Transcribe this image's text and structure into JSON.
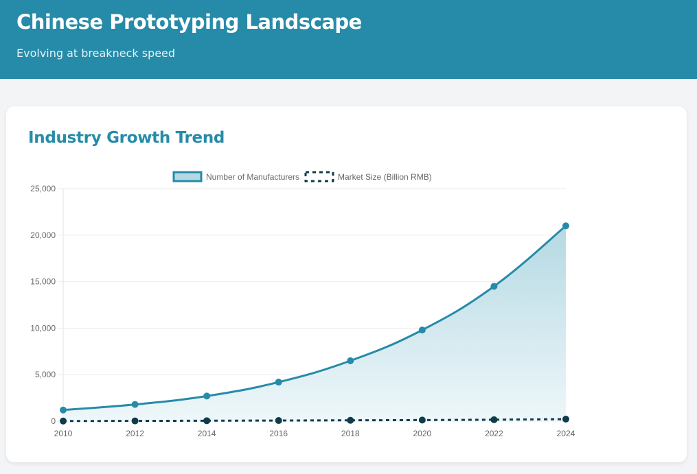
{
  "header": {
    "title": "Chinese Prototyping Landscape",
    "subtitle": "Evolving at breakneck speed"
  },
  "card": {
    "title": "Industry Growth Trend"
  },
  "colors": {
    "primary": "#268ba8",
    "secondary": "#0e3c4a",
    "area_top": "#b5d9e3",
    "area_bottom": "#eef7fa"
  },
  "chart_data": {
    "type": "line",
    "title": "Industry Growth Trend",
    "xlabel": "",
    "ylabel": "",
    "x": [
      "2010",
      "2012",
      "2014",
      "2016",
      "2018",
      "2020",
      "2022",
      "2024"
    ],
    "ylim": [
      0,
      25000
    ],
    "yticks": [
      "0",
      "5,000",
      "10,000",
      "15,000",
      "20,000",
      "25,000"
    ],
    "ytick_values": [
      0,
      5000,
      10000,
      15000,
      20000,
      25000
    ],
    "grid": true,
    "legend_position": "top-center",
    "series": [
      {
        "name": "Number of Manufacturers",
        "values": [
          1200,
          1800,
          2700,
          4200,
          6500,
          9800,
          14500,
          21000
        ],
        "style": "solid",
        "fill": true
      },
      {
        "name": "Market Size (Billion RMB)",
        "values": [
          15,
          30,
          50,
          70,
          95,
          120,
          160,
          220
        ],
        "style": "dashed",
        "fill": false
      }
    ]
  }
}
